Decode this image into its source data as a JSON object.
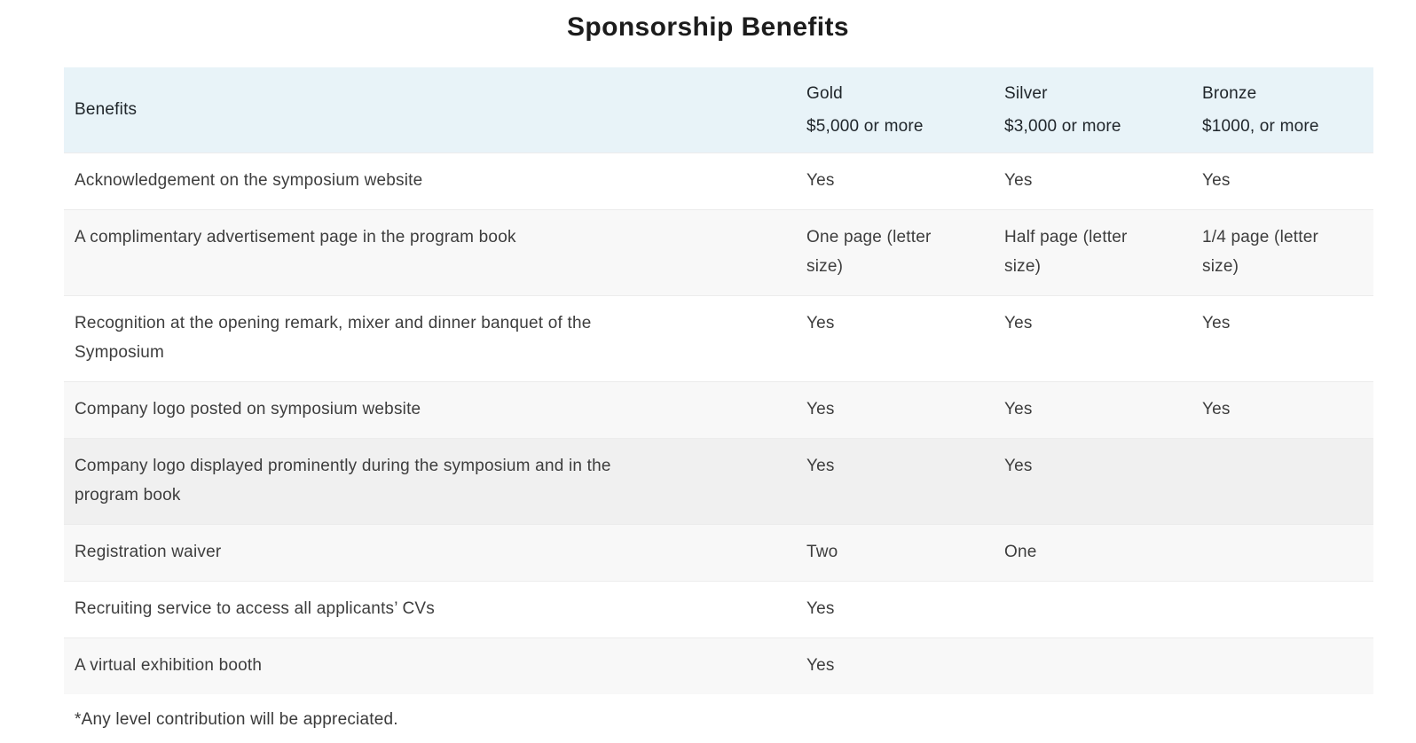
{
  "page": {
    "title": "Sponsorship Benefits",
    "footnote": "*Any level contribution will be appreciated."
  },
  "table": {
    "columns": {
      "benefits_label": "Benefits",
      "tiers": [
        {
          "name": "Gold",
          "amount": "$5,000 or more"
        },
        {
          "name": "Silver",
          "amount": "$3,000 or more"
        },
        {
          "name": "Bronze",
          "amount": "$1000, or more"
        }
      ]
    },
    "rows": [
      {
        "benefit": "Acknowledgement on the symposium website",
        "gold": "Yes",
        "silver": "Yes",
        "bronze": "Yes",
        "shade": "white"
      },
      {
        "benefit": "A complimentary advertisement page in the program book",
        "gold": "One page (letter size)",
        "silver": "Half page (letter size)",
        "bronze": "1/4 page (letter size)",
        "shade": "light"
      },
      {
        "benefit": "Recognition at the opening remark, mixer and dinner banquet of the Symposium",
        "gold": "Yes",
        "silver": "Yes",
        "bronze": "Yes",
        "shade": "white"
      },
      {
        "benefit": "Company logo posted on symposium website",
        "gold": "Yes",
        "silver": "Yes",
        "bronze": "Yes",
        "shade": "light"
      },
      {
        "benefit": "Company logo displayed prominently during the symposium and in the program book",
        "gold": "Yes",
        "silver": "Yes",
        "bronze": "",
        "shade": "medium"
      },
      {
        "benefit": "Registration waiver",
        "gold": "Two",
        "silver": "One",
        "bronze": "",
        "shade": "light"
      },
      {
        "benefit": "Recruiting service to access all applicants’ CVs",
        "gold": "Yes",
        "silver": "",
        "bronze": "",
        "shade": "white"
      },
      {
        "benefit": "A virtual exhibition booth",
        "gold": "Yes",
        "silver": "",
        "bronze": "",
        "shade": "light"
      }
    ]
  },
  "colors": {
    "header_bg": "#e8f3f8",
    "row_white": "#ffffff",
    "row_light": "#f8f8f8",
    "row_medium": "#f0f0f0",
    "divider": "#ececec",
    "title_text": "#1c1c1c",
    "body_text": "#3d3d3d"
  }
}
